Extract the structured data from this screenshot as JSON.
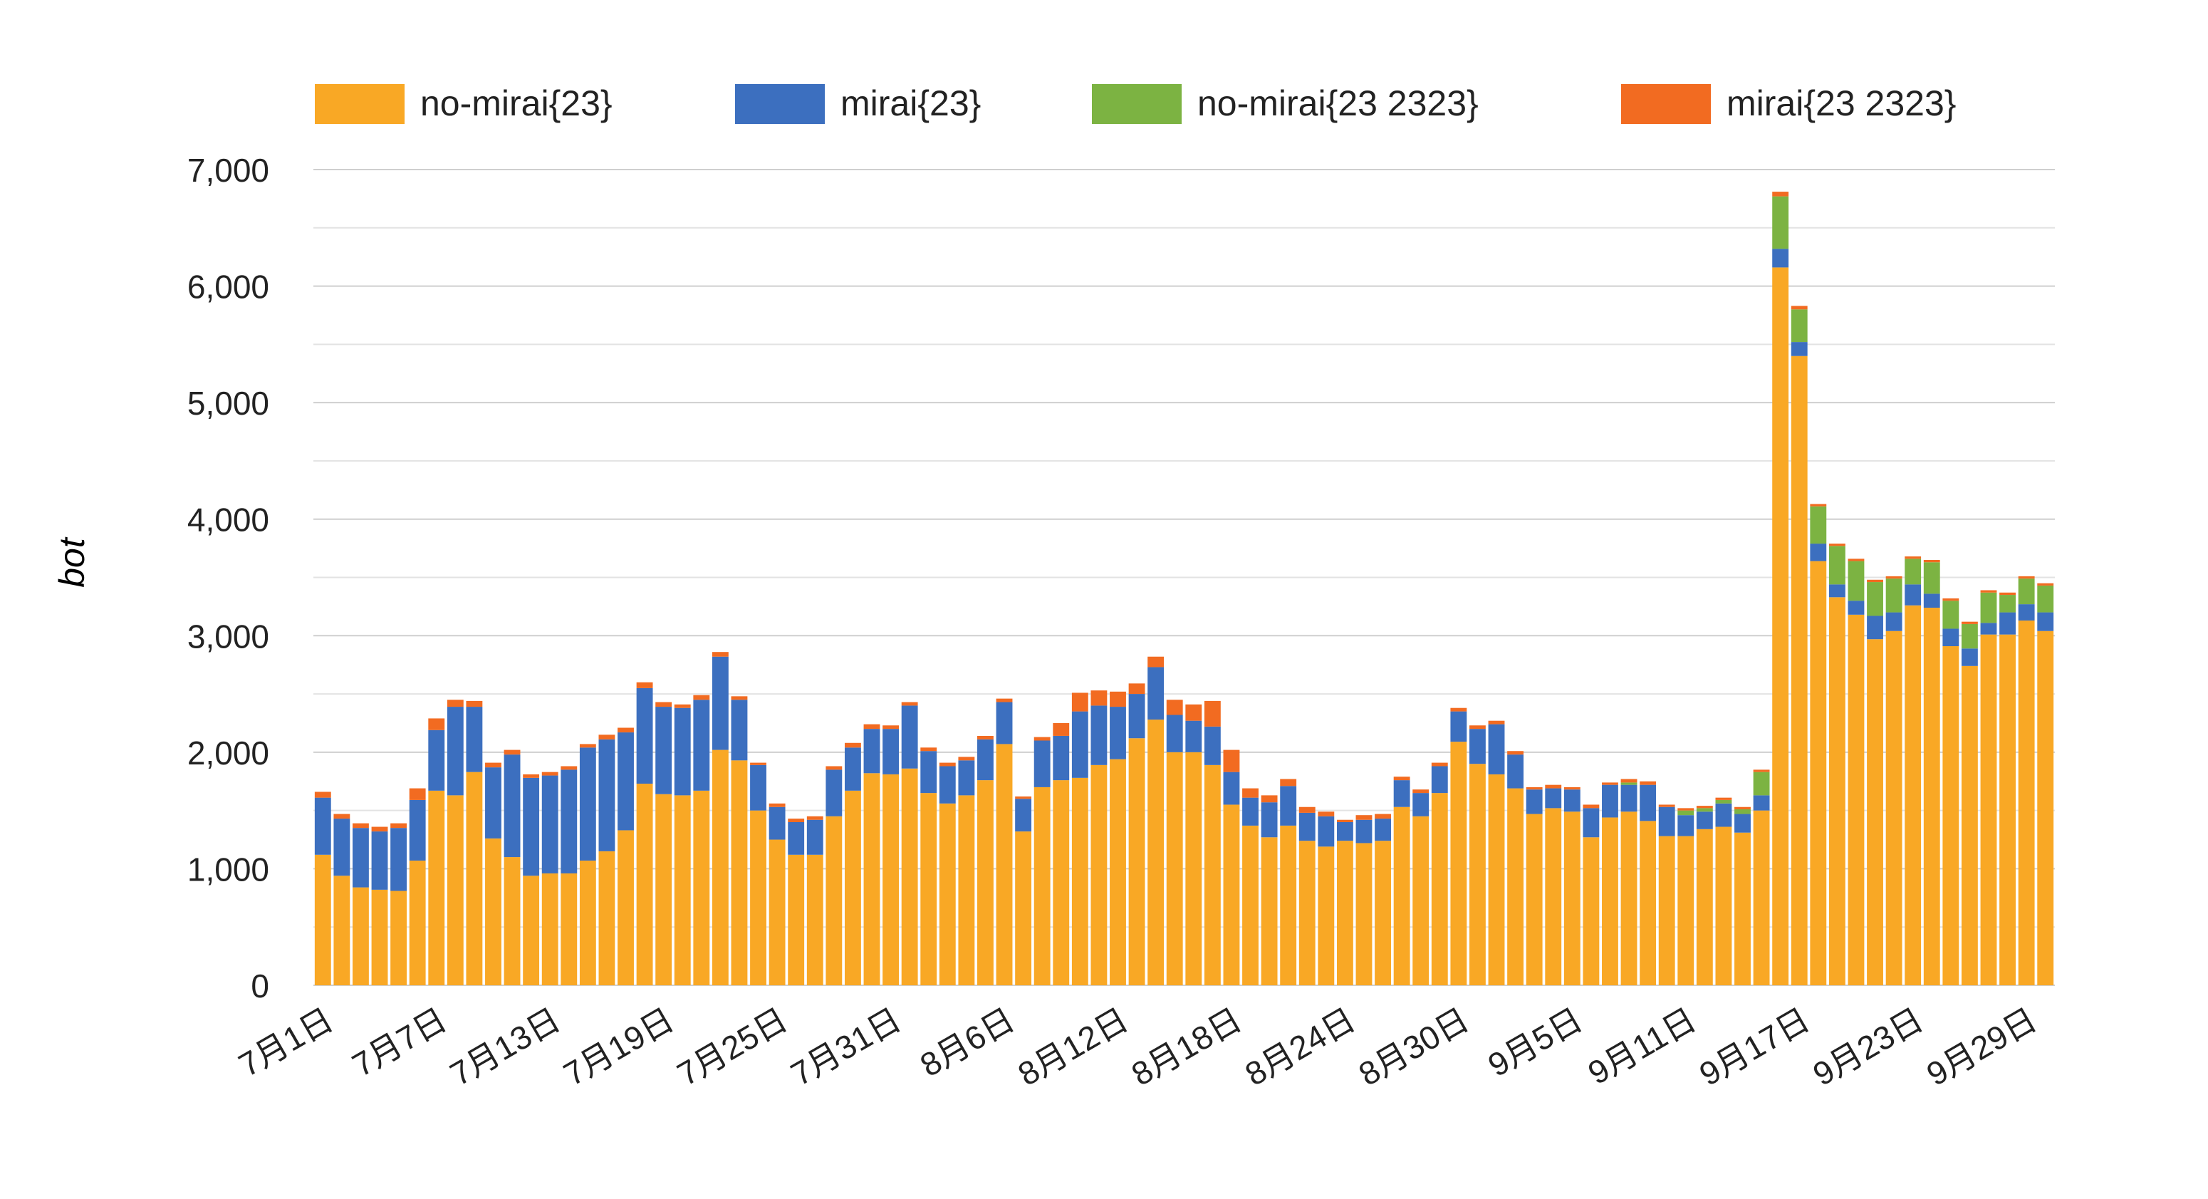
{
  "chart_data": {
    "type": "bar",
    "stacked": true,
    "title": "",
    "xlabel": "",
    "ylabel": "bot",
    "ylim": [
      0,
      7000
    ],
    "yticks": [
      "0",
      "1,000",
      "2,000",
      "3,000",
      "4,000",
      "5,000",
      "6,000",
      "7,000"
    ],
    "ytick_values": [
      0,
      1000,
      2000,
      3000,
      4000,
      5000,
      6000,
      7000
    ],
    "grid": true,
    "legend_position": "top",
    "colors": [
      "#F9A825",
      "#3C6FBF",
      "#7CB342",
      "#F26B21"
    ],
    "x_tick_labels": [
      "7月1日",
      "7月7日",
      "7月13日",
      "7月19日",
      "7月25日",
      "7月31日",
      "8月6日",
      "8月12日",
      "8月18日",
      "8月24日",
      "8月30日",
      "9月5日",
      "9月11日",
      "9月17日",
      "9月23日",
      "9月29日"
    ],
    "x_tick_indices": [
      0,
      6,
      12,
      18,
      24,
      30,
      36,
      42,
      48,
      54,
      60,
      66,
      72,
      78,
      84,
      90
    ],
    "categories": [
      "7/1",
      "7/2",
      "7/3",
      "7/4",
      "7/5",
      "7/6",
      "7/7",
      "7/8",
      "7/9",
      "7/10",
      "7/11",
      "7/12",
      "7/13",
      "7/14",
      "7/15",
      "7/16",
      "7/17",
      "7/18",
      "7/19",
      "7/20",
      "7/21",
      "7/22",
      "7/23",
      "7/24",
      "7/25",
      "7/26",
      "7/27",
      "7/28",
      "7/29",
      "7/30",
      "7/31",
      "8/1",
      "8/2",
      "8/3",
      "8/4",
      "8/5",
      "8/6",
      "8/7",
      "8/8",
      "8/9",
      "8/10",
      "8/11",
      "8/12",
      "8/13",
      "8/14",
      "8/15",
      "8/16",
      "8/17",
      "8/18",
      "8/19",
      "8/20",
      "8/21",
      "8/22",
      "8/23",
      "8/24",
      "8/25",
      "8/26",
      "8/27",
      "8/28",
      "8/29",
      "8/30",
      "8/31",
      "9/1",
      "9/2",
      "9/3",
      "9/4",
      "9/5",
      "9/6",
      "9/7",
      "9/8",
      "9/9",
      "9/10",
      "9/11",
      "9/12",
      "9/13",
      "9/14",
      "9/15",
      "9/16",
      "9/17",
      "9/18",
      "9/19",
      "9/20",
      "9/21",
      "9/22",
      "9/23",
      "9/24",
      "9/25",
      "9/26",
      "9/27",
      "9/28",
      "9/29",
      "9/30"
    ],
    "series": [
      {
        "name": "no-mirai{23}",
        "values": [
          1120,
          940,
          840,
          820,
          810,
          1070,
          1670,
          1630,
          1830,
          1260,
          1100,
          940,
          960,
          960,
          1070,
          1150,
          1330,
          1730,
          1640,
          1630,
          1670,
          2020,
          1930,
          1500,
          1250,
          1120,
          1120,
          1450,
          1670,
          1820,
          1810,
          1860,
          1650,
          1560,
          1630,
          1760,
          2070,
          1320,
          1700,
          1760,
          1780,
          1890,
          1940,
          2120,
          2280,
          2000,
          2000,
          1890,
          1550,
          1370,
          1270,
          1370,
          1240,
          1190,
          1240,
          1220,
          1240,
          1530,
          1450,
          1650,
          2090,
          1900,
          1810,
          1690,
          1470,
          1520,
          1490,
          1270,
          1440,
          1490,
          1410,
          1280,
          1280,
          1340,
          1360,
          1310,
          1500,
          6160,
          5400,
          3640,
          3330,
          3180,
          2970,
          3040,
          3260,
          3240,
          2910,
          2740,
          3010,
          3010,
          3130,
          3040
        ],
        "color": "#F9A825"
      },
      {
        "name": "mirai{23}",
        "values": [
          490,
          490,
          510,
          500,
          540,
          520,
          520,
          760,
          560,
          610,
          880,
          840,
          840,
          890,
          970,
          960,
          840,
          820,
          750,
          750,
          780,
          800,
          520,
          390,
          280,
          280,
          300,
          400,
          370,
          380,
          390,
          540,
          360,
          320,
          300,
          350,
          360,
          280,
          400,
          380,
          570,
          510,
          450,
          380,
          450,
          320,
          270,
          330,
          280,
          240,
          300,
          340,
          240,
          260,
          160,
          200,
          190,
          230,
          200,
          230,
          260,
          300,
          430,
          290,
          210,
          170,
          190,
          250,
          280,
          230,
          310,
          250,
          180,
          150,
          200,
          160,
          130,
          160,
          120,
          150,
          110,
          120,
          200,
          160,
          180,
          120,
          150,
          150,
          100,
          190,
          140,
          160
        ],
        "color": "#3C6FBF"
      },
      {
        "name": "no-mirai{23 2323}",
        "values": [
          0,
          0,
          0,
          0,
          0,
          0,
          0,
          0,
          0,
          0,
          0,
          0,
          0,
          0,
          0,
          0,
          0,
          0,
          0,
          0,
          0,
          0,
          0,
          0,
          0,
          0,
          0,
          0,
          0,
          0,
          0,
          0,
          0,
          0,
          0,
          0,
          0,
          0,
          0,
          0,
          0,
          0,
          0,
          0,
          0,
          0,
          0,
          0,
          0,
          0,
          0,
          0,
          0,
          0,
          0,
          0,
          0,
          0,
          0,
          0,
          0,
          0,
          0,
          0,
          0,
          0,
          0,
          0,
          0,
          20,
          0,
          0,
          40,
          30,
          30,
          40,
          200,
          450,
          280,
          320,
          330,
          340,
          290,
          290,
          220,
          270,
          240,
          210,
          260,
          150,
          220,
          230
        ],
        "color": "#7CB342"
      },
      {
        "name": "mirai{23 2323}",
        "values": [
          50,
          40,
          40,
          40,
          40,
          100,
          100,
          60,
          50,
          40,
          40,
          30,
          30,
          30,
          30,
          40,
          40,
          50,
          40,
          30,
          40,
          40,
          30,
          20,
          30,
          30,
          30,
          30,
          40,
          40,
          30,
          30,
          30,
          30,
          30,
          30,
          30,
          20,
          30,
          110,
          160,
          130,
          130,
          90,
          90,
          130,
          140,
          220,
          190,
          80,
          60,
          60,
          50,
          40,
          20,
          40,
          40,
          30,
          30,
          30,
          30,
          30,
          30,
          30,
          20,
          30,
          20,
          30,
          20,
          30,
          30,
          20,
          20,
          20,
          20,
          20,
          20,
          40,
          30,
          20,
          20,
          20,
          20,
          20,
          20,
          20,
          20,
          20,
          20,
          20,
          20,
          20
        ],
        "color": "#F26B21"
      }
    ]
  }
}
